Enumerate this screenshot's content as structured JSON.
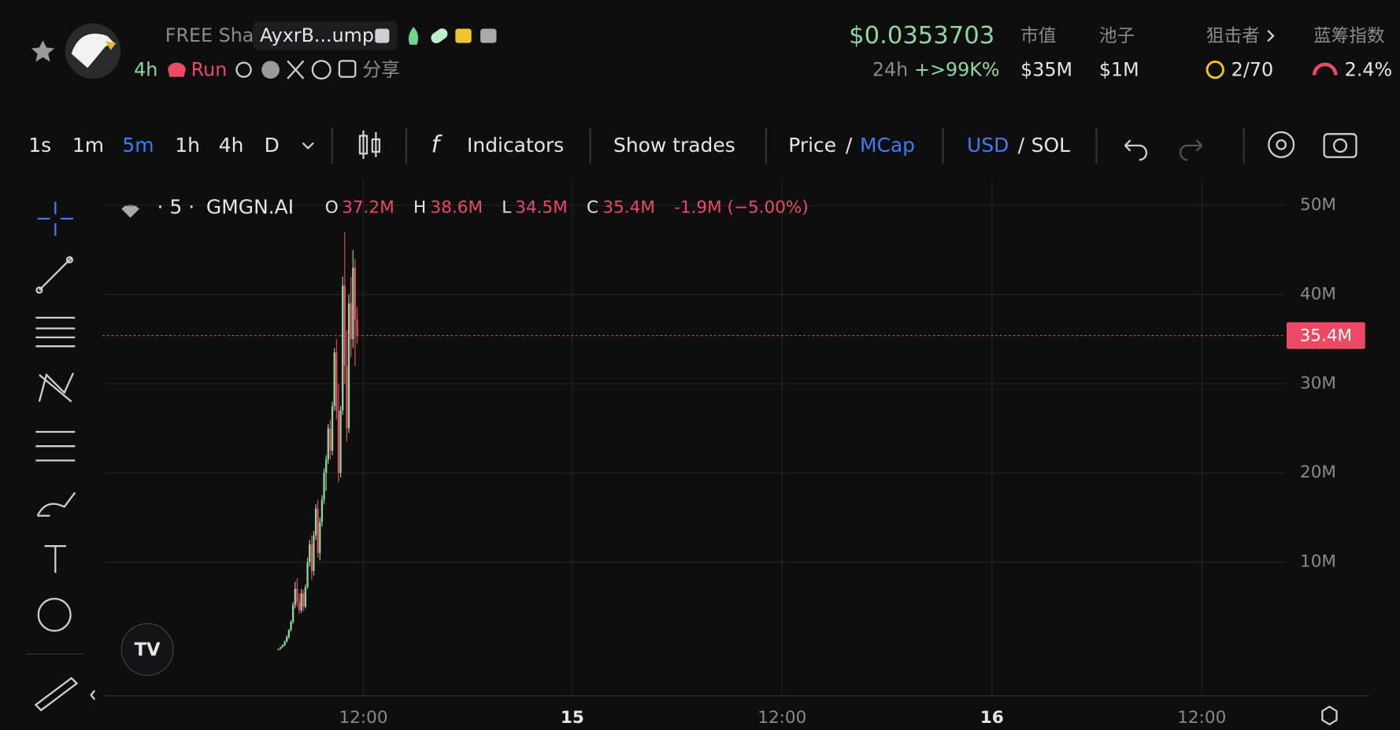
{
  "header": {
    "token_name": "FREE Sha",
    "address": "AyxrB...ump",
    "age": "4h",
    "tag": "Run",
    "share": "分享",
    "price": "$0.0353703",
    "change_period": "24h",
    "change": "+>99K%",
    "stats": [
      {
        "label": "市值",
        "value": "$35M"
      },
      {
        "label": "池子",
        "value": "$1M"
      },
      {
        "label": "狙击者",
        "value": "2/70"
      },
      {
        "label": "蓝筹指数",
        "value": "2.4%"
      }
    ]
  },
  "toolbar": {
    "intervals": [
      "1s",
      "1m",
      "5m",
      "1h",
      "4h",
      "D"
    ],
    "indicators": "Indicators",
    "show_trades": "Show trades",
    "price": "Price",
    "slash": "/",
    "mcap": "MCap",
    "usd": "USD",
    "sol": "SOL"
  },
  "legend": {
    "interval": "· 5 ·",
    "source": "GMGN.AI",
    "open_label": "O",
    "open": "37.2M",
    "high_label": "H",
    "high": "38.6M",
    "low_label": "L",
    "low": "34.5M",
    "close_label": "C",
    "close": "35.4M",
    "change": "-1.9M (−5.00%)"
  },
  "chart": {
    "ylim": [
      -5,
      52.5
    ],
    "yticks": [
      {
        "value": 10,
        "label": "10M"
      },
      {
        "value": 20,
        "label": "20M"
      },
      {
        "value": 30,
        "label": "30M"
      },
      {
        "value": 40,
        "label": "40M"
      },
      {
        "value": 50,
        "label": "50M"
      }
    ],
    "xticks": [
      "12:00",
      "15",
      "12:00",
      "16",
      "12:00"
    ],
    "last_price": {
      "value": 35.4,
      "label": "35.4M"
    },
    "candles": [
      [
        0.2,
        0.3,
        0.1,
        0.3
      ],
      [
        0.3,
        0.5,
        0.2,
        0.5
      ],
      [
        0.5,
        0.8,
        0.4,
        0.7
      ],
      [
        0.7,
        1.2,
        0.6,
        1.1
      ],
      [
        1.1,
        1.8,
        1.0,
        1.6
      ],
      [
        1.6,
        2.5,
        1.4,
        2.4
      ],
      [
        2.4,
        3.5,
        2.2,
        3.3
      ],
      [
        3.3,
        5.5,
        3.1,
        5.2
      ],
      [
        5.2,
        7.8,
        4.8,
        7.0
      ],
      [
        7.0,
        8.2,
        5.0,
        5.5
      ],
      [
        5.5,
        6.5,
        4.2,
        4.6
      ],
      [
        4.6,
        7.0,
        4.3,
        6.5
      ],
      [
        6.5,
        6.9,
        4.5,
        5.0
      ],
      [
        5.0,
        7.5,
        4.8,
        7.2
      ],
      [
        7.2,
        10.5,
        7.0,
        10.0
      ],
      [
        10.0,
        12.5,
        9.5,
        12.0
      ],
      [
        12.0,
        13.0,
        8.0,
        9.0
      ],
      [
        9.0,
        13.5,
        8.5,
        13.0
      ],
      [
        13.0,
        16.5,
        12.5,
        16.0
      ],
      [
        16.0,
        17.0,
        10.5,
        11.0
      ],
      [
        11.0,
        15.0,
        10.2,
        14.5
      ],
      [
        14.5,
        17.5,
        14.0,
        17.0
      ],
      [
        17.0,
        20.5,
        16.5,
        20.0
      ],
      [
        20.0,
        22.0,
        18.0,
        21.5
      ],
      [
        21.5,
        25.5,
        21.0,
        25.0
      ],
      [
        25.0,
        26.0,
        21.5,
        22.5
      ],
      [
        22.5,
        28.0,
        22.0,
        27.5
      ],
      [
        27.5,
        34.0,
        27.0,
        33.5
      ],
      [
        33.5,
        35.0,
        26.0,
        27.0
      ],
      [
        27.0,
        30.0,
        19.0,
        20.0
      ],
      [
        20.0,
        27.5,
        19.5,
        27.0
      ],
      [
        27.0,
        42.0,
        26.5,
        41.0
      ],
      [
        41.0,
        47.0,
        30.0,
        32.0
      ],
      [
        32.0,
        36.0,
        23.5,
        25.0
      ],
      [
        25.0,
        40.0,
        24.5,
        39.0
      ],
      [
        39.0,
        42.0,
        33.0,
        35.0
      ],
      [
        35.0,
        45.0,
        34.0,
        43.0
      ],
      [
        43.0,
        44.0,
        32.0,
        37.2
      ],
      [
        37.2,
        38.6,
        34.5,
        35.4
      ]
    ]
  }
}
